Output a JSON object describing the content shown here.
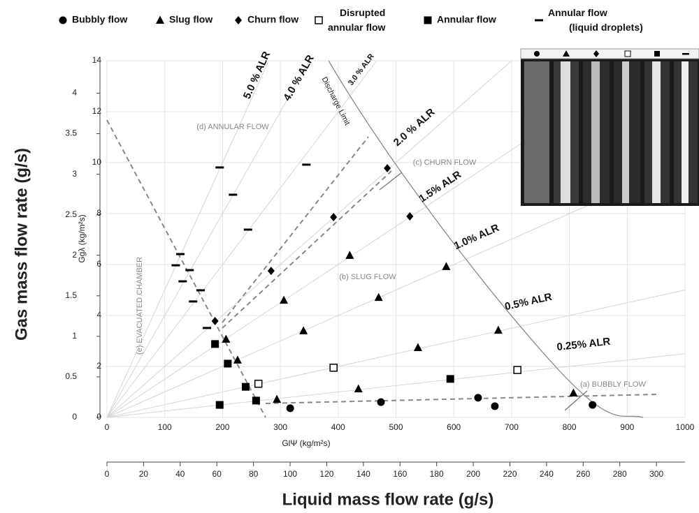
{
  "chart_data": {
    "type": "scatter",
    "xlabel": "GlΨ (kg/m²s)",
    "ylabel": "Ggλ (kg/m²s)",
    "x2label": "Liquid mass flow rate (g/s)",
    "y2label": "Gas mass flow rate (g/s)",
    "xlim": [
      0,
      1000
    ],
    "xticks": [
      0,
      100,
      200,
      300,
      400,
      500,
      600,
      700,
      800,
      900,
      1000
    ],
    "ylim": [
      0,
      14
    ],
    "yticks": [
      0,
      2,
      4,
      6,
      8,
      10,
      12,
      14
    ],
    "x2lim": [
      0,
      315.6
    ],
    "x2ticks": [
      0,
      20,
      40,
      60,
      80,
      100,
      120,
      140,
      160,
      180,
      200,
      220,
      240,
      260,
      280,
      300
    ],
    "y2lim": [
      0,
      4.4
    ],
    "y2ticks": [
      0,
      0.5,
      1,
      1.5,
      2,
      2.5,
      3,
      3.5,
      4
    ],
    "grid": true,
    "color": "#000000",
    "series": [
      {
        "name": "Bubbly flow",
        "marker": "circle",
        "x": [
          317,
          474,
          642,
          671,
          840
        ],
        "values": [
          0.36,
          0.6,
          0.77,
          0.44,
          0.49
        ]
      },
      {
        "name": "Slug flow",
        "marker": "triangle",
        "x": [
          206,
          226,
          294,
          306,
          340,
          420,
          435,
          470,
          538,
          587,
          677,
          807
        ],
        "values": [
          3.07,
          2.25,
          0.71,
          4.6,
          3.4,
          6.36,
          1.12,
          4.71,
          2.74,
          5.92,
          3.42,
          0.96
        ]
      },
      {
        "name": "Churn flow",
        "marker": "diamond",
        "x": [
          187,
          284,
          392,
          485,
          524
        ],
        "values": [
          3.78,
          5.75,
          7.86,
          9.78,
          7.89
        ]
      },
      {
        "name": "Disrupted annular flow",
        "marker": "open-square",
        "x": [
          262,
          392,
          710
        ],
        "values": [
          1.32,
          1.95,
          1.86
        ]
      },
      {
        "name": "Annular flow",
        "marker": "square",
        "x": [
          187,
          209,
          240,
          258,
          195,
          594
        ],
        "values": [
          2.88,
          2.11,
          1.2,
          0.66,
          0.49,
          1.51
        ]
      },
      {
        "name": "Annular flow (liquid droplets)",
        "marker": "dash",
        "x": [
          195,
          218,
          244,
          345,
          127,
          119,
          131,
          143,
          162,
          149,
          173
        ],
        "values": [
          9.81,
          8.74,
          7.37,
          9.92,
          6.41,
          5.97,
          5.34,
          5.78,
          4.99,
          4.55,
          3.51
        ]
      }
    ],
    "alr_lines": [
      {
        "label": "5.0 % ALR",
        "value": 5.0
      },
      {
        "label": "4.0 % ALR",
        "value": 4.0
      },
      {
        "label": "3.0 % ALR",
        "value": 3.0
      },
      {
        "label": "2.0 % ALR",
        "value": 2.0
      },
      {
        "label": "1.5% ALR",
        "value": 1.5
      },
      {
        "label": "1.0% ALR",
        "value": 1.0
      },
      {
        "label": "0.5% ALR",
        "value": 0.5
      },
      {
        "label": "0.25% ALR",
        "value": 0.25
      }
    ],
    "annotations": [
      "(a) BUBBLY FLOW",
      "(b) SLUG FLOW",
      "(c) CHURN FLOW",
      "(d) ANNULAR FLOW",
      "(e) EVACUATED CHAMBER",
      "Discharge Limit"
    ]
  }
}
